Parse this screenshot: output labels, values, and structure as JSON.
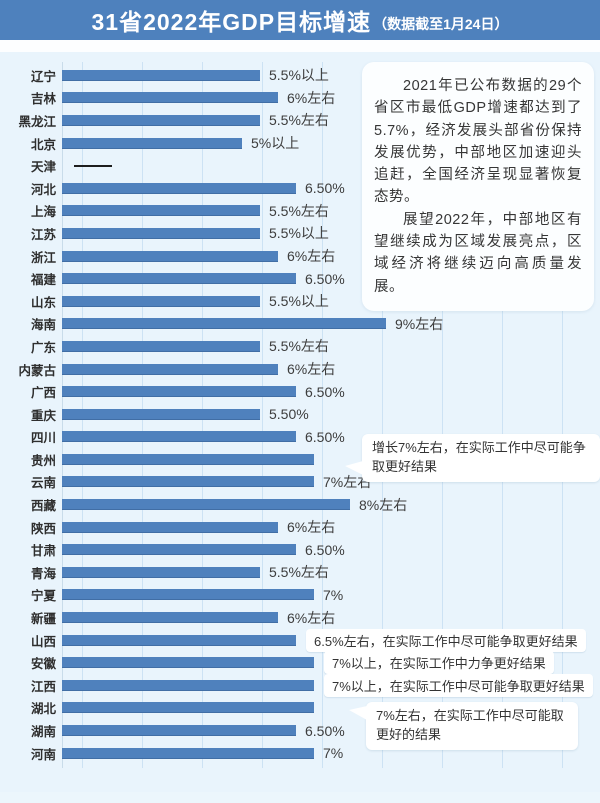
{
  "header": {
    "title": "31省2022年GDP目标增速",
    "subtitle": "（数据截至1月24日）"
  },
  "textbox": {
    "p1": "2021年已公布数据的29个省区市最低GDP增速都达到了5.7%，经济发展头部省份保持发展优势，中部地区加速迎头追赶，全国经济呈现显著恢复态势。",
    "p2": "展望2022年，中部地区有望继续成为区域发展亮点，区域经济将继续迈向高质量发展。"
  },
  "callouts": [
    {
      "target": "贵州",
      "text": "增长7%左右，在实际工作中尽可能争取更好结果"
    },
    {
      "target": "湖北",
      "text": "7%左右，在实际工作中尽可能取更好的结果"
    }
  ],
  "colors": {
    "header_bg": "#4e81bd",
    "bar": "#4f81bd",
    "panel_bg": "#e9f4fc",
    "label_text": "#2e2e2e",
    "value_text": "#3d3d3d"
  },
  "chart_data": {
    "type": "bar",
    "orientation": "horizontal",
    "title": "31省2022年GDP目标增速（数据截至1月24日）",
    "unit": "percent",
    "xlim": [
      0,
      14.5
    ],
    "grid": "faint-vertical",
    "note": "天津 shown as dash (no target published)",
    "rows": [
      {
        "province": "辽宁",
        "value": 5.5,
        "label": "5.5%以上"
      },
      {
        "province": "吉林",
        "value": 6,
        "label": "6%左右"
      },
      {
        "province": "黑龙江",
        "value": 5.5,
        "label": "5.5%左右"
      },
      {
        "province": "北京",
        "value": 5,
        "label": "5%以上"
      },
      {
        "province": "天津",
        "value": null,
        "label": "",
        "dash": true
      },
      {
        "province": "河北",
        "value": 6.5,
        "label": "6.50%"
      },
      {
        "province": "上海",
        "value": 5.5,
        "label": "5.5%左右"
      },
      {
        "province": "江苏",
        "value": 5.5,
        "label": "5.5%以上"
      },
      {
        "province": "浙江",
        "value": 6,
        "label": "6%左右"
      },
      {
        "province": "福建",
        "value": 6.5,
        "label": "6.50%"
      },
      {
        "province": "山东",
        "value": 5.5,
        "label": "5.5%以上"
      },
      {
        "province": "海南",
        "value": 9,
        "label": "9%左右"
      },
      {
        "province": "广东",
        "value": 5.5,
        "label": "5.5%左右"
      },
      {
        "province": "内蒙古",
        "value": 6,
        "label": "6%左右"
      },
      {
        "province": "广西",
        "value": 6.5,
        "label": "6.50%"
      },
      {
        "province": "重庆",
        "value": 5.5,
        "label": "5.50%"
      },
      {
        "province": "四川",
        "value": 6.5,
        "label": "6.50%"
      },
      {
        "province": "贵州",
        "value": 7,
        "label": ""
      },
      {
        "province": "云南",
        "value": 7,
        "label": "7%左右"
      },
      {
        "province": "西藏",
        "value": 8,
        "label": "8%左右"
      },
      {
        "province": "陕西",
        "value": 6,
        "label": "6%左右"
      },
      {
        "province": "甘肃",
        "value": 6.5,
        "label": "6.50%"
      },
      {
        "province": "青海",
        "value": 5.5,
        "label": "5.5%左右"
      },
      {
        "province": "宁夏",
        "value": 7,
        "label": "7%"
      },
      {
        "province": "新疆",
        "value": 6,
        "label": "6%左右"
      },
      {
        "province": "山西",
        "value": 6.5,
        "label": "6.5%左右，在实际工作中尽可能争取更好结果",
        "boxed": true
      },
      {
        "province": "安徽",
        "value": 7,
        "label": "7%以上，在实际工作中力争更好结果",
        "boxed": true
      },
      {
        "province": "江西",
        "value": 7,
        "label": "7%以上，在实际工作中尽可能争取更好结果",
        "boxed": true
      },
      {
        "province": "湖北",
        "value": 7,
        "label": ""
      },
      {
        "province": "湖南",
        "value": 6.5,
        "label": "6.50%"
      },
      {
        "province": "河南",
        "value": 7,
        "label": "7%"
      }
    ]
  }
}
